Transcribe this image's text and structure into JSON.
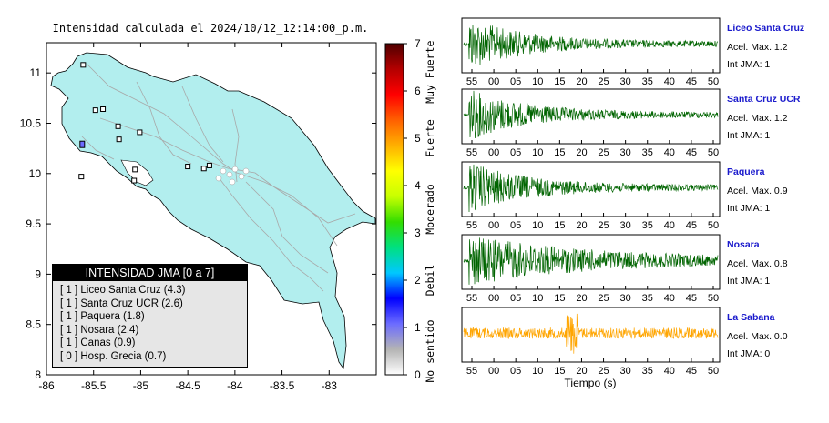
{
  "map": {
    "title": "Intensidad calculada el 2024/10/12_12:14:00_p.m.",
    "x_ticks": [
      "-86",
      "-85.5",
      "-85",
      "-84.5",
      "-84",
      "-83.5",
      "-83"
    ],
    "y_ticks": [
      "11",
      "10.5",
      "10",
      "9.5",
      "9",
      "8.5",
      "8"
    ],
    "xlim": [
      -86,
      -82.5
    ],
    "ylim": [
      8,
      11.3
    ],
    "land_color": "#b2eeee",
    "stations": [
      {
        "lon": -85.61,
        "lat": 11.08
      },
      {
        "lon": -85.48,
        "lat": 10.63
      },
      {
        "lon": -85.4,
        "lat": 10.64
      },
      {
        "lon": -85.62,
        "lat": 10.29
      },
      {
        "lon": -85.63,
        "lat": 9.97
      },
      {
        "lon": -85.24,
        "lat": 10.47
      },
      {
        "lon": -85.01,
        "lat": 10.41
      },
      {
        "lon": -85.23,
        "lat": 10.34
      },
      {
        "lon": -85.06,
        "lat": 10.04
      },
      {
        "lon": -85.07,
        "lat": 9.93
      },
      {
        "lon": -84.5,
        "lat": 10.07
      },
      {
        "lon": -84.27,
        "lat": 10.08
      },
      {
        "lon": -84.33,
        "lat": 10.05
      }
    ],
    "colorbar": {
      "ticks": [
        "0",
        "1",
        "2",
        "3",
        "4",
        "5",
        "6",
        "7"
      ],
      "labels": [
        "No sentido",
        "Debil",
        "Moderado",
        "Fuerte",
        "Muy Fuerte"
      ],
      "colors": [
        "#ffffff",
        "#b4b4b4",
        "#6c6cff",
        "#0000ff",
        "#00c8ff",
        "#00e080",
        "#33dd00",
        "#c8ff00",
        "#ffff00",
        "#ffb000",
        "#ff6000",
        "#ff0000",
        "#b40000",
        "#500000"
      ]
    },
    "legend": {
      "title": "INTENSIDAD JMA [0 a 7]",
      "items": [
        "[ 1 ] Liceo Santa Cruz (4.3)",
        "[ 1 ] Santa Cruz UCR (2.6)",
        "[ 1 ] Paquera (1.8)",
        "[ 1 ] Nosara (2.4)",
        "[ 1 ] Canas (0.9)",
        "[ 0 ] Hosp. Grecia (0.7)"
      ]
    }
  },
  "waveforms": {
    "time_ticks": [
      "55",
      "00",
      "05",
      "10",
      "15",
      "20",
      "25",
      "30",
      "35",
      "40",
      "45",
      "50"
    ],
    "xlabel": "Tiempo (s)",
    "panels": [
      {
        "name": "Liceo Santa Cruz",
        "accel": "Acel. Max. 1.2",
        "jma": "Int JMA: 1",
        "color": "#006400"
      },
      {
        "name": "Santa Cruz UCR",
        "accel": "Acel. Max. 1.2",
        "jma": "Int JMA: 1",
        "color": "#006400"
      },
      {
        "name": "Paquera",
        "accel": "Acel. Max. 0.9",
        "jma": "Int JMA: 1",
        "color": "#006400"
      },
      {
        "name": "Nosara",
        "accel": "Acel. Max. 0.8",
        "jma": "Int JMA: 1",
        "color": "#006400"
      },
      {
        "name": "La Sabana",
        "accel": "Acel. Max. 0.0",
        "jma": "Int JMA: 0",
        "color": "#ffa500"
      }
    ]
  },
  "chart_data": [
    {
      "type": "scatter",
      "title": "Intensidad calculada el 2024/10/12_12:14:00_p.m.",
      "x_ticks": [
        -86,
        -85.5,
        -85,
        -84.5,
        -84,
        -83.5,
        -83
      ],
      "y_ticks": [
        8,
        8.5,
        9,
        9.5,
        10,
        10.5,
        11
      ],
      "xlim": [
        -86,
        -82.5
      ],
      "ylim": [
        8,
        11.3
      ],
      "colorbar_range": [
        0,
        7
      ]
    },
    {
      "type": "line",
      "series": [
        {
          "name": "Liceo Santa Cruz",
          "accel_max": 1.2,
          "jma": 1
        },
        {
          "name": "Santa Cruz UCR",
          "accel_max": 1.2,
          "jma": 1
        },
        {
          "name": "Paquera",
          "accel_max": 0.9,
          "jma": 1
        },
        {
          "name": "Nosara",
          "accel_max": 0.8,
          "jma": 1
        },
        {
          "name": "La Sabana",
          "accel_max": 0.0,
          "jma": 0
        }
      ],
      "x_ticks": [
        "55",
        "00",
        "05",
        "10",
        "15",
        "20",
        "25",
        "30",
        "35",
        "40",
        "45",
        "50"
      ],
      "xlabel": "Tiempo (s)"
    }
  ]
}
